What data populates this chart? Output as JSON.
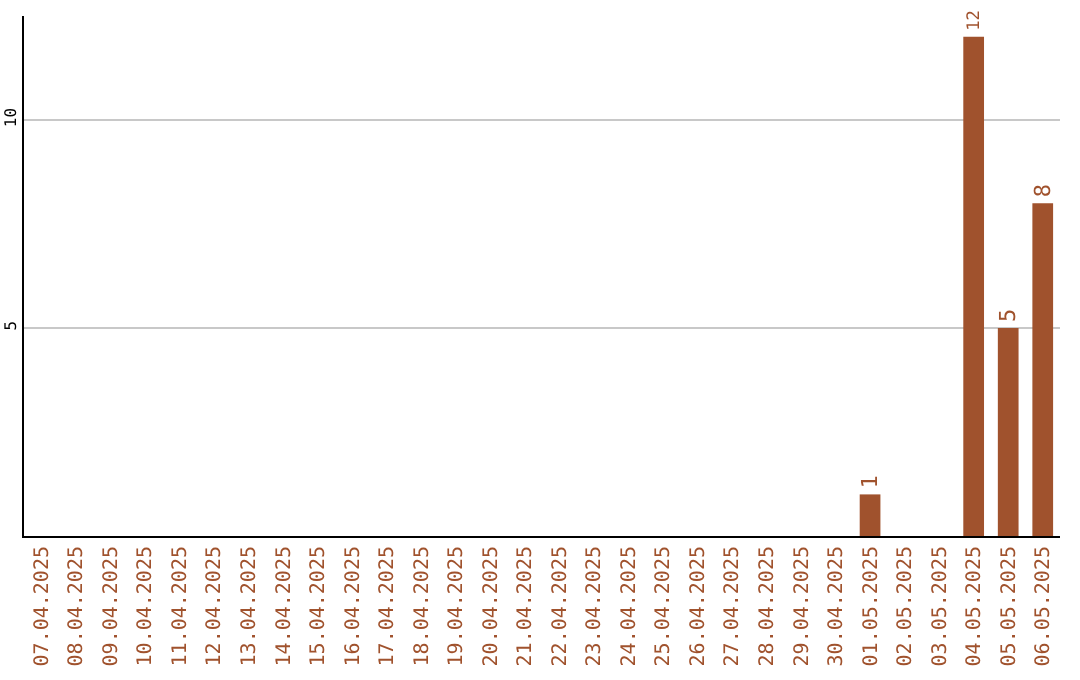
{
  "chart_data": {
    "type": "bar",
    "categories": [
      "07.04.2025",
      "08.04.2025",
      "09.04.2025",
      "10.04.2025",
      "11.04.2025",
      "12.04.2025",
      "13.04.2025",
      "14.04.2025",
      "15.04.2025",
      "16.04.2025",
      "17.04.2025",
      "18.04.2025",
      "19.04.2025",
      "20.04.2025",
      "21.04.2025",
      "22.04.2025",
      "23.04.2025",
      "24.04.2025",
      "25.04.2025",
      "26.04.2025",
      "27.04.2025",
      "28.04.2025",
      "29.04.2025",
      "30.04.2025",
      "01.05.2025",
      "02.05.2025",
      "03.05.2025",
      "04.05.2025",
      "05.05.2025",
      "06.05.2025"
    ],
    "values": [
      0,
      0,
      0,
      0,
      0,
      0,
      0,
      0,
      0,
      0,
      0,
      0,
      0,
      0,
      0,
      0,
      0,
      0,
      0,
      0,
      0,
      0,
      0,
      0,
      1,
      0,
      0,
      12,
      5,
      8
    ],
    "value_labels": [
      null,
      null,
      null,
      null,
      null,
      null,
      null,
      null,
      null,
      null,
      null,
      null,
      null,
      null,
      null,
      null,
      null,
      null,
      null,
      null,
      null,
      null,
      null,
      null,
      "1",
      null,
      null,
      "12",
      "5",
      "8"
    ],
    "color": "#a0522d",
    "ylim": [
      0,
      12.5
    ],
    "yticks": [
      5,
      10
    ],
    "grid": "y",
    "legend": false
  }
}
